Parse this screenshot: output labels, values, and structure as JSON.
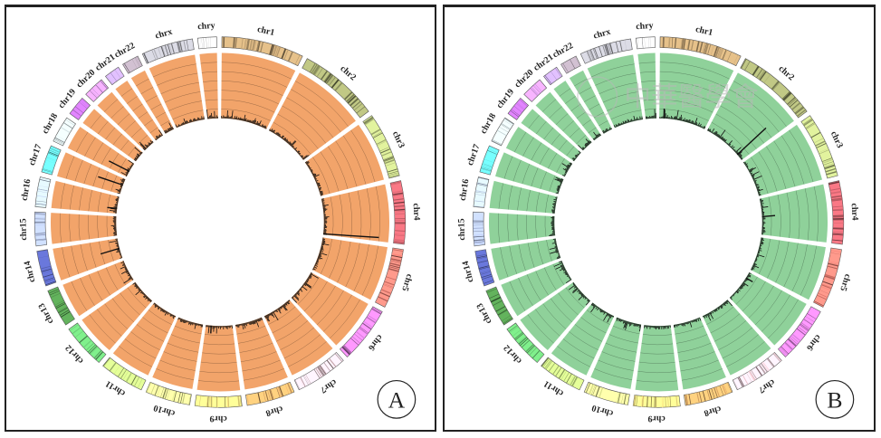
{
  "figure": {
    "panels": [
      {
        "id": "A",
        "label": "A",
        "track_color": "#f2a46a"
      },
      {
        "id": "B",
        "label": "B",
        "track_color": "#8fd19a"
      }
    ],
    "watermark_text": "中華醫學會"
  },
  "chart_data": [
    {
      "type": "circos",
      "panel": "A",
      "title": "",
      "chromosomes": [
        "chr1",
        "chr2",
        "chr3",
        "chr4",
        "chr5",
        "chr6",
        "chr7",
        "chr8",
        "chr9",
        "chr10",
        "chr11",
        "chr12",
        "chr13",
        "chr14",
        "chr15",
        "chr16",
        "chr17",
        "chr18",
        "chr19",
        "chr20",
        "chr21",
        "chr22",
        "chrx",
        "chry"
      ],
      "relative_sizes": [
        249,
        243,
        198,
        191,
        181,
        171,
        159,
        146,
        141,
        136,
        135,
        134,
        115,
        107,
        102,
        90,
        83,
        80,
        59,
        64,
        47,
        51,
        156,
        57
      ],
      "ideogram_colors": [
        "#b89a6e",
        "#9aa06a",
        "#b5c27e",
        "#c8606a",
        "#e57b70",
        "#cc7ad0",
        "#e9c4cc",
        "#e0a866",
        "#e8d27a",
        "#d9df8a",
        "#b7d27a",
        "#66c070",
        "#4f8f4a",
        "#5560b0",
        "#a7b4e0",
        "#b9c8e4",
        "#5fd0d0",
        "#c4d4d8",
        "#b56ad0",
        "#c690e0",
        "#b59ae0",
        "#a89aa8",
        "#b0b0b8",
        "#d4d4d8"
      ],
      "track": {
        "rings": 6,
        "value_range": [
          0,
          1
        ]
      },
      "notable_peaks": [
        {
          "chromosome": "chr4",
          "position": 0.98,
          "value": 0.85
        },
        {
          "chromosome": "chr17",
          "position": 0.6,
          "value": 0.4
        },
        {
          "chromosome": "chr14",
          "position": 0.5,
          "value": 0.3
        },
        {
          "chromosome": "chr18",
          "position": 0.4,
          "value": 0.35
        },
        {
          "chromosome": "chr16",
          "position": 0.3,
          "value": 0.15
        },
        {
          "chromosome": "chr9",
          "position": 0.8,
          "value": 0.12
        }
      ]
    },
    {
      "type": "circos",
      "panel": "B",
      "title": "",
      "chromosomes": [
        "chr1",
        "chr2",
        "chr3",
        "chr4",
        "chr5",
        "chr6",
        "chr7",
        "chr8",
        "chr9",
        "chr10",
        "chr11",
        "chr12",
        "chr13",
        "chr14",
        "chr15",
        "chr16",
        "chr17",
        "chr18",
        "chr19",
        "chr20",
        "chr21",
        "chr22",
        "chrx",
        "chry"
      ],
      "relative_sizes": [
        249,
        243,
        198,
        191,
        181,
        171,
        159,
        146,
        141,
        136,
        135,
        134,
        115,
        107,
        102,
        90,
        83,
        80,
        59,
        64,
        47,
        51,
        156,
        57
      ],
      "ideogram_colors": [
        "#b89a6e",
        "#9aa06a",
        "#b5c27e",
        "#c8606a",
        "#e57b70",
        "#cc7ad0",
        "#e9c4cc",
        "#e0a866",
        "#e8d27a",
        "#d9df8a",
        "#b7d27a",
        "#66c070",
        "#4f8f4a",
        "#5560b0",
        "#a7b4e0",
        "#b9c8e4",
        "#5fd0d0",
        "#c4d4d8",
        "#b56ad0",
        "#c690e0",
        "#b59ae0",
        "#a89aa8",
        "#b0b0b8",
        "#d4d4d8"
      ],
      "track": {
        "rings": 6,
        "value_range": [
          0,
          1
        ]
      },
      "notable_peaks": [
        {
          "chromosome": "chr2",
          "position": 0.85,
          "value": 0.6
        },
        {
          "chromosome": "chr1",
          "position": 0.1,
          "value": 0.15
        },
        {
          "chromosome": "chr4",
          "position": 0.5,
          "value": 0.2
        },
        {
          "chromosome": "chr6",
          "position": 0.2,
          "value": 0.12
        }
      ]
    }
  ]
}
